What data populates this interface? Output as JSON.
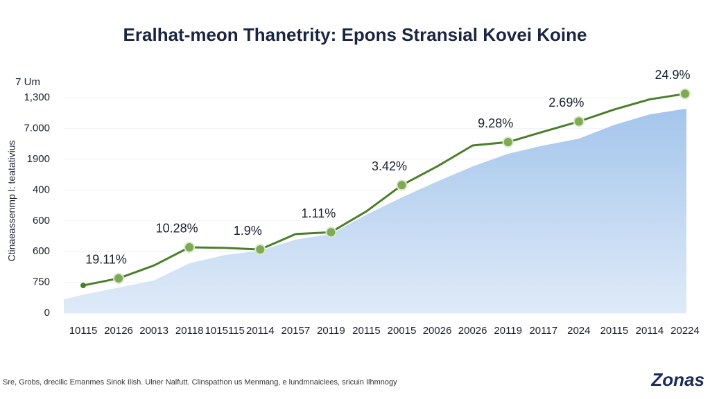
{
  "chart_data": {
    "type": "line",
    "title": "Eralhat-meon Thanetrity: Epons Stransial Kovei Koine",
    "y_unit_label": "7 Um",
    "y_axis_label": "Ctinaeassenmp l: teatativius",
    "footer": "Sre, Grobs, drecilic Emanmes Sinok Ilish. Ulner Nalfutt. Clinspathon us Menmang, e lundmnaiclees, sricuin Ilhmnogy",
    "logo": "Zonas",
    "categories": [
      "10115",
      "20126",
      "20013",
      "20118",
      "1015115",
      "20114",
      "20157",
      "20119",
      "20115",
      "20015",
      "20026",
      "20026",
      "20119",
      "20117",
      "2024",
      "20115",
      "20114",
      "20224"
    ],
    "series": [
      {
        "name": "area",
        "area": true,
        "color": "#aac9ec",
        "values": [
          0.6,
          0.83,
          1.06,
          1.62,
          1.89,
          2.03,
          2.39,
          2.57,
          3.2,
          3.76,
          4.28,
          4.77,
          5.18,
          5.45,
          5.67,
          6.12,
          6.46,
          6.64
        ]
      },
      {
        "name": "line",
        "color": "#4a7f2a",
        "values": [
          0.9,
          1.13,
          1.55,
          2.14,
          2.12,
          2.07,
          2.57,
          2.63,
          3.31,
          4.16,
          4.77,
          5.45,
          5.56,
          5.9,
          6.23,
          6.62,
          6.95,
          7.13
        ]
      }
    ],
    "annotations": [
      {
        "category_index_label": "20126",
        "text": "19.11%"
      },
      {
        "category_index_label": "20118",
        "text": "10.28%"
      },
      {
        "category_index_label": "20114",
        "text": "1.9%"
      },
      {
        "category_index_label": "20119",
        "text": "1.11%"
      },
      {
        "category_index_label": "20015",
        "text": "3.42%"
      },
      {
        "category_index_label": "20119",
        "text": "9.28%"
      },
      {
        "category_index_label": "2024",
        "text": "2.69%"
      },
      {
        "category_index_label": "20224",
        "text": "24.9%"
      }
    ],
    "annotation_points": [
      1,
      3,
      5,
      7,
      9,
      12,
      14,
      17
    ],
    "ylim": [
      0,
      7.5
    ],
    "yticks": [
      {
        "value": 0,
        "label": "0"
      },
      {
        "value": 1,
        "label": "750"
      },
      {
        "value": 2,
        "label": "600"
      },
      {
        "value": 3,
        "label": "600"
      },
      {
        "value": 4,
        "label": "400"
      },
      {
        "value": 5,
        "label": "1900"
      },
      {
        "value": 6,
        "label": "7.000"
      },
      {
        "value": 7,
        "label": "1,300"
      }
    ]
  }
}
